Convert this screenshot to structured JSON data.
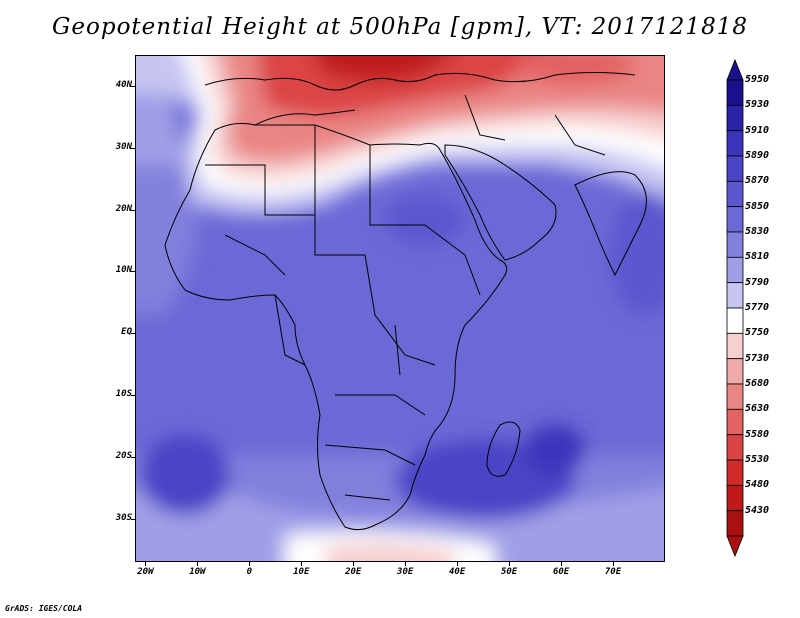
{
  "title": "Geopotential Height at 500hPa [gpm], VT: 2017121818",
  "credit": "GrADS: IGES/COLA",
  "map": {
    "lat_labels": [
      "40N",
      "30N",
      "20N",
      "10N",
      "EQ",
      "10S",
      "20S",
      "30S"
    ],
    "lon_labels": [
      "20W",
      "10W",
      "0",
      "10E",
      "20E",
      "30E",
      "40E",
      "50E",
      "60E",
      "70E"
    ],
    "lat_range": [
      -37,
      45
    ],
    "lon_range": [
      -22,
      80
    ]
  },
  "colorbar": {
    "levels": [
      "5950",
      "5930",
      "5910",
      "5890",
      "5870",
      "5850",
      "5830",
      "5810",
      "5790",
      "5770",
      "5750",
      "5730",
      "5680",
      "5630",
      "5580",
      "5530",
      "5480",
      "5430"
    ],
    "colors": [
      "#1a0f8c",
      "#2a23a8",
      "#3a34bb",
      "#4a45c6",
      "#5b57cf",
      "#6b69d6",
      "#8280dd",
      "#a09fe6",
      "#c7c6f2",
      "#ffffff",
      "#f6cfcf",
      "#f0aaaa",
      "#ea8585",
      "#e36262",
      "#db4444",
      "#cf2b2b",
      "#bf1a1a",
      "#ab1010"
    ]
  }
}
